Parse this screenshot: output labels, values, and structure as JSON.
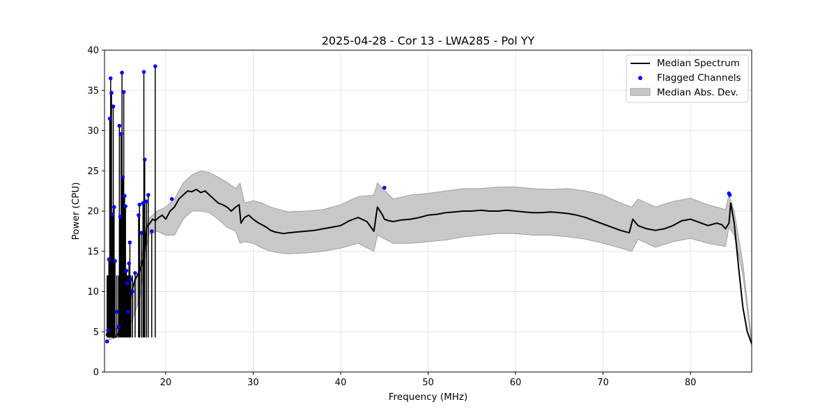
{
  "chart_data": {
    "type": "line",
    "title": "2025-04-28 - Cor 13 - LWA285 - Pol YY",
    "xlabel": "Frequency (MHz)",
    "ylabel": "Power (CPU)",
    "xlim": [
      13.0,
      87.0
    ],
    "ylim": [
      0,
      40
    ],
    "xticks": [
      20,
      30,
      40,
      50,
      60,
      70,
      80
    ],
    "yticks": [
      0,
      5,
      10,
      15,
      20,
      25,
      30,
      35,
      40
    ],
    "grid": true,
    "legend_position": "top-right",
    "legend": [
      "Median Spectrum",
      "Flagged Channels",
      "Median Abs. Dev."
    ],
    "colors": {
      "median": "#000000",
      "flagged": "#0000ff",
      "mad_fill": "#c8c8c8",
      "mad_edge": "#a0a0a0"
    },
    "series": [
      {
        "name": "Median Spectrum",
        "x": [
          13.2,
          13.4,
          13.6,
          13.8,
          14.0,
          14.3,
          14.6,
          15.0,
          15.2,
          15.5,
          15.8,
          16.1,
          16.5,
          17.0,
          17.3,
          17.6,
          17.8,
          18.2,
          18.5,
          18.8,
          19.2,
          19.6,
          20.0,
          20.5,
          21.0,
          21.5,
          22.0,
          22.5,
          23.0,
          23.5,
          24.0,
          24.5,
          25.0,
          25.5,
          26.0,
          26.5,
          27.0,
          27.5,
          28.0,
          28.4,
          28.6,
          29.0,
          29.5,
          30.0,
          30.5,
          31.0,
          31.5,
          32.0,
          32.5,
          33.0,
          33.5,
          34.0,
          35.0,
          36.0,
          37.0,
          38.0,
          39.0,
          40.0,
          41.0,
          42.0,
          43.0,
          43.8,
          44.2,
          44.8,
          45.0,
          45.5,
          46.0,
          47.0,
          48.0,
          49.0,
          50.0,
          51.0,
          52.0,
          53.0,
          54.0,
          55.0,
          56.0,
          57.0,
          58.0,
          59.0,
          60.0,
          61.0,
          62.0,
          63.0,
          64.0,
          65.0,
          66.0,
          67.0,
          68.0,
          69.0,
          70.0,
          71.0,
          72.0,
          73.0,
          73.4,
          74.0,
          75.0,
          76.0,
          77.0,
          78.0,
          79.0,
          80.0,
          81.0,
          82.0,
          83.0,
          83.6,
          84.0,
          84.4,
          84.6,
          85.0,
          85.5,
          86.0,
          86.5,
          87.0
        ],
        "y": [
          4.5,
          5.2,
          5.0,
          4.6,
          4.3,
          4.4,
          4.8,
          5.5,
          6.0,
          7.0,
          8.5,
          10.0,
          11.5,
          12.5,
          13.5,
          15.0,
          18.0,
          18.5,
          19.0,
          18.8,
          19.2,
          19.5,
          19.0,
          20.0,
          20.5,
          21.5,
          22.0,
          22.5,
          22.4,
          22.7,
          22.3,
          22.5,
          22.0,
          21.5,
          21.0,
          20.8,
          20.5,
          20.0,
          20.5,
          20.8,
          18.5,
          19.2,
          19.5,
          19.0,
          18.6,
          18.3,
          18.0,
          17.6,
          17.4,
          17.3,
          17.2,
          17.3,
          17.4,
          17.5,
          17.6,
          17.8,
          18.0,
          18.2,
          18.8,
          19.2,
          18.7,
          17.5,
          20.5,
          19.5,
          19.0,
          18.8,
          18.7,
          18.9,
          19.0,
          19.2,
          19.5,
          19.6,
          19.8,
          19.9,
          20.0,
          20.0,
          20.1,
          20.0,
          20.0,
          20.1,
          20.0,
          19.9,
          19.8,
          19.8,
          19.9,
          19.8,
          19.7,
          19.5,
          19.2,
          18.8,
          18.4,
          18.0,
          17.6,
          17.3,
          19.0,
          18.2,
          17.8,
          17.6,
          17.8,
          18.2,
          18.8,
          19.0,
          18.6,
          18.2,
          18.5,
          18.3,
          17.8,
          18.5,
          21.0,
          18.5,
          13.0,
          8.0,
          5.0,
          3.5
        ]
      },
      {
        "name": "Median Abs. Dev.",
        "x": [
          13.5,
          15.0,
          16.0,
          17.0,
          18.0,
          19.0,
          20.0,
          21.0,
          22.0,
          23.0,
          24.0,
          25.0,
          26.0,
          27.0,
          28.0,
          28.5,
          29.0,
          30.0,
          31.0,
          32.0,
          33.0,
          34.0,
          36.0,
          38.0,
          40.0,
          42.0,
          43.8,
          44.2,
          46.0,
          48.0,
          50.0,
          52.0,
          54.0,
          56.0,
          58.0,
          60.0,
          62.0,
          64.0,
          66.0,
          68.0,
          70.0,
          72.0,
          73.3,
          74.0,
          76.0,
          78.0,
          80.0,
          82.0,
          84.0,
          84.4,
          85.0,
          86.0,
          87.0
        ],
        "upper": [
          4.8,
          6.0,
          9.0,
          13.0,
          19.0,
          20.0,
          20.5,
          21.5,
          23.5,
          24.5,
          25.0,
          24.8,
          24.2,
          23.6,
          22.8,
          23.5,
          21.0,
          21.3,
          21.0,
          20.5,
          20.2,
          19.9,
          20.0,
          20.2,
          20.8,
          21.8,
          22.0,
          23.5,
          21.5,
          22.0,
          22.2,
          22.5,
          22.8,
          22.8,
          23.0,
          23.0,
          22.8,
          22.7,
          22.8,
          22.5,
          22.0,
          21.0,
          20.5,
          21.5,
          20.5,
          21.2,
          21.6,
          20.8,
          20.2,
          22.0,
          20.0,
          13.5,
          3.8
        ],
        "lower": [
          4.0,
          4.5,
          6.0,
          9.0,
          17.0,
          17.5,
          17.0,
          17.0,
          19.0,
          20.0,
          20.0,
          19.8,
          19.0,
          18.0,
          17.5,
          16.0,
          16.2,
          16.0,
          15.4,
          15.0,
          14.8,
          14.7,
          14.8,
          15.0,
          15.4,
          16.0,
          15.0,
          17.0,
          16.0,
          16.0,
          16.2,
          16.4,
          16.8,
          17.0,
          17.2,
          17.2,
          17.0,
          17.0,
          16.8,
          16.5,
          16.0,
          15.4,
          15.0,
          16.5,
          15.5,
          16.2,
          16.6,
          16.0,
          15.6,
          18.0,
          17.0,
          12.0,
          3.2
        ]
      },
      {
        "name": "Flagged Channels",
        "x": [
          13.3,
          13.4,
          13.5,
          13.6,
          13.7,
          13.8,
          13.9,
          14.0,
          14.1,
          14.2,
          14.4,
          14.6,
          14.7,
          14.8,
          14.9,
          15.0,
          15.1,
          15.2,
          15.3,
          15.4,
          15.5,
          15.6,
          15.7,
          15.8,
          15.9,
          16.0,
          16.2,
          16.5,
          16.9,
          17.0,
          17.2,
          17.4,
          17.5,
          17.6,
          17.8,
          18.0,
          18.4,
          18.8,
          20.7,
          45.0,
          84.4,
          84.5
        ],
        "y": [
          3.8,
          5.2,
          14.0,
          31.5,
          36.5,
          34.7,
          19.6,
          33.0,
          20.5,
          13.8,
          7.5,
          5.6,
          30.6,
          19.3,
          29.6,
          37.2,
          24.2,
          34.8,
          21.9,
          20.6,
          12.6,
          11.0,
          7.5,
          13.5,
          16.1,
          11.5,
          10.0,
          12.3,
          19.5,
          20.8,
          17.3,
          21.0,
          37.3,
          26.4,
          21.2,
          22.0,
          17.5,
          38.0,
          21.5,
          22.9,
          22.2,
          22.0
        ]
      }
    ]
  }
}
